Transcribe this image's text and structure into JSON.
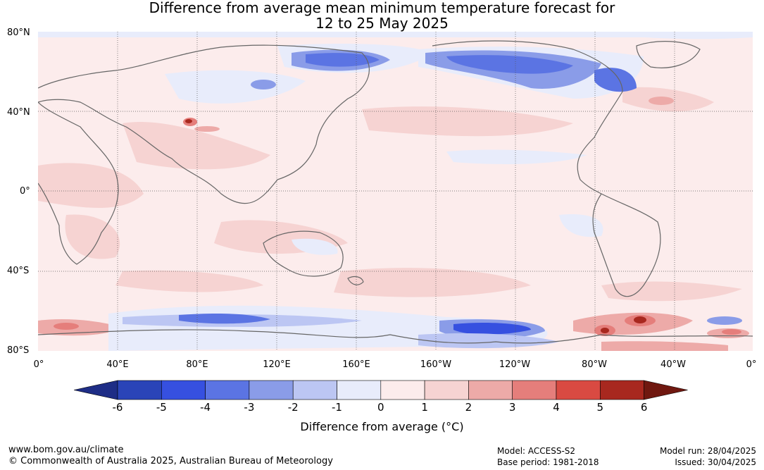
{
  "title": {
    "line1": "Difference from average mean minimum temperature forecast for",
    "line2": "12 to 25 May 2025"
  },
  "map": {
    "lat_labels": [
      "80°N",
      "40°N",
      "0°",
      "40°S",
      "80°S"
    ],
    "lon_labels": [
      "0°",
      "40°E",
      "80°E",
      "120°E",
      "160°E",
      "160°W",
      "120°W",
      "80°W",
      "40°W",
      "0°"
    ]
  },
  "colorbar": {
    "ticks": [
      "-6",
      "-5",
      "-4",
      "-3",
      "-2",
      "-1",
      "0",
      "1",
      "2",
      "3",
      "4",
      "5",
      "6"
    ],
    "colors": [
      "#1e2d86",
      "#2a44b8",
      "#3650e0",
      "#5b74e3",
      "#8a9ce8",
      "#bcc6f3",
      "#e8ecfb",
      "#fcecec",
      "#f6d3d2",
      "#edaaa8",
      "#e57e7b",
      "#d94a42",
      "#a8281f",
      "#701810"
    ],
    "label": "Difference from average (°C)"
  },
  "footer": {
    "url": "www.bom.gov.au/climate",
    "copyright": "© Commonwealth of Australia 2025, Australian Bureau of Meteorology",
    "model": "Model: ACCESS-S2",
    "base_period": "Base period: 1981-2018",
    "model_run": "Model run: 28/04/2025",
    "issued": "Issued: 30/04/2025"
  }
}
